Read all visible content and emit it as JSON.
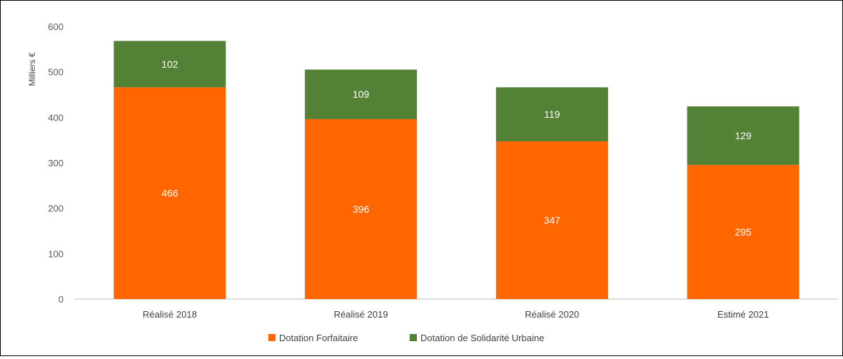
{
  "chart_data": {
    "type": "bar",
    "stacked": true,
    "title": "",
    "xlabel": "",
    "ylabel": "Milliers €",
    "ylim": [
      0,
      600
    ],
    "yticks": [
      0,
      100,
      200,
      300,
      400,
      500,
      600
    ],
    "categories": [
      "Réalisé 2018",
      "Réalisé 2019",
      "Réalisé 2020",
      "Estimé 2021"
    ],
    "series": [
      {
        "name": "Dotation Forfaitaire",
        "color": "#ff6600",
        "values": [
          466,
          396,
          347,
          295
        ]
      },
      {
        "name": "Dotation de Solidarité Urbaine",
        "color": "#538135",
        "values": [
          102,
          109,
          119,
          129
        ]
      }
    ],
    "grid": false,
    "legend": "bottom-center",
    "data_labels": true
  }
}
